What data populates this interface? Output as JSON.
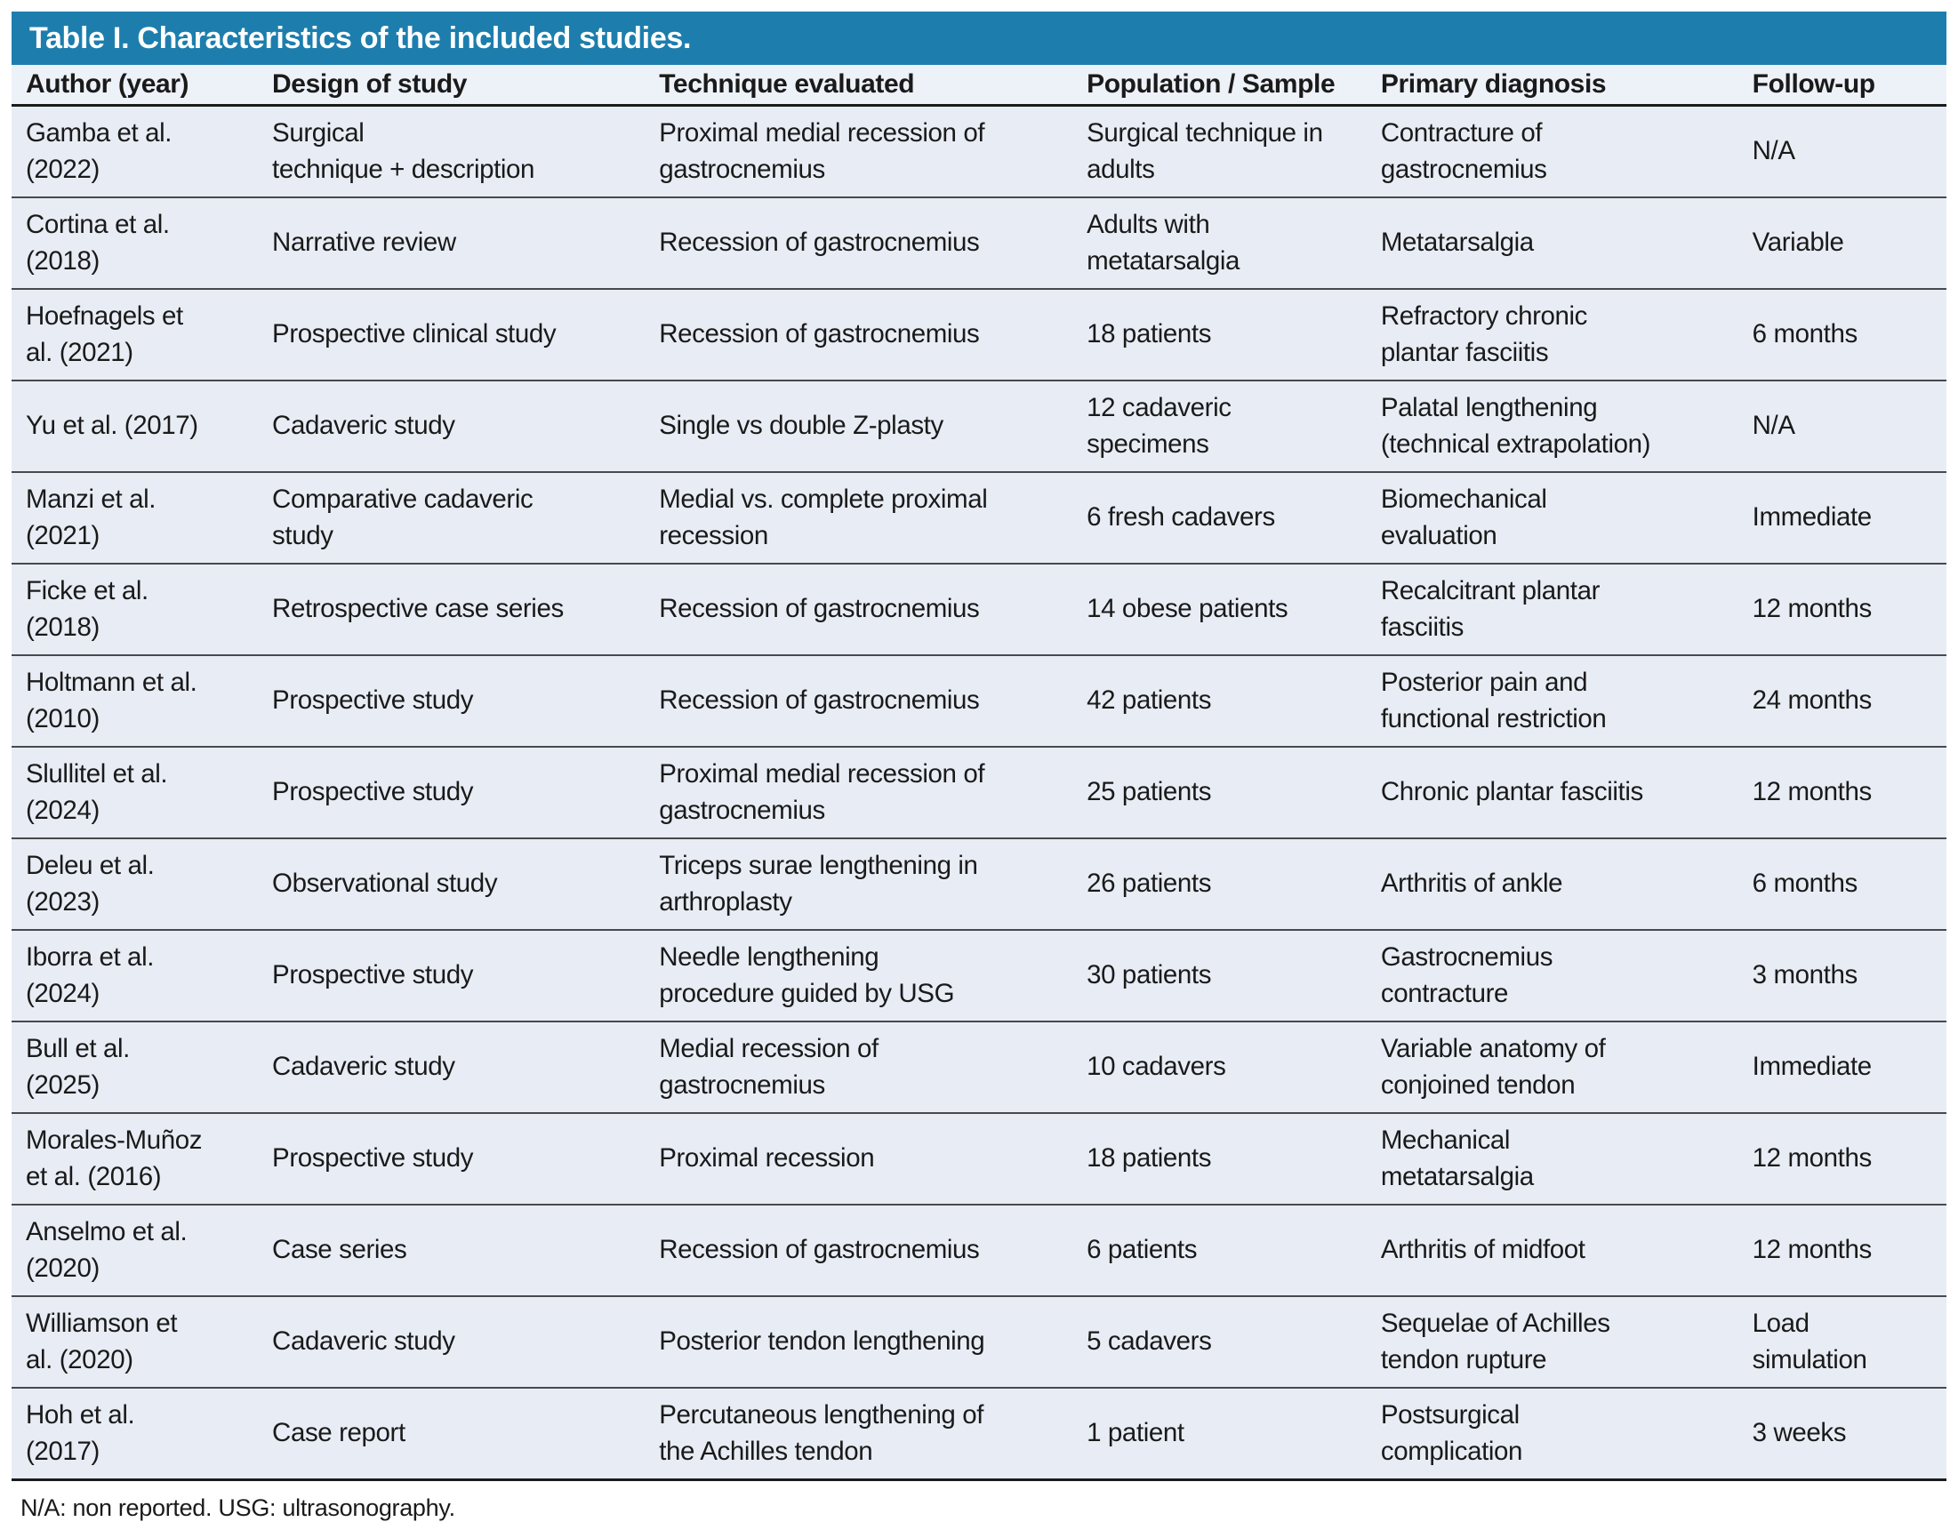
{
  "title": "Table I. Characteristics of the included studies.",
  "footnote": "N/A: non reported. USG: ultrasonography.",
  "colors": {
    "page_bg": "#ffffff",
    "title_bar": "#1d7ead",
    "title_text": "#ffffff",
    "header_bg": "#edf1f8",
    "row_bg": "#e8edf5",
    "divider": "#47494c",
    "strong_border": "#1b1b1b",
    "text": "#1a1a1a"
  },
  "table": {
    "columns": [
      {
        "key": "author",
        "label": "Author (year)",
        "width": "13.1%"
      },
      {
        "key": "design",
        "label": "Design of study",
        "width": "20.0%"
      },
      {
        "key": "technique",
        "label": "Technique evaluated",
        "width": "22.1%"
      },
      {
        "key": "population",
        "label": "Population / Sample",
        "width": "15.2%"
      },
      {
        "key": "diagnosis",
        "label": "Primary diagnosis",
        "width": "19.2%"
      },
      {
        "key": "followup",
        "label": "Follow-up",
        "width": "10.4%"
      }
    ],
    "rows": [
      {
        "cells": [
          "Gamba et al.\n(2022)",
          "Surgical\ntechnique + description",
          "Proximal medial recession of\ngastrocnemius",
          "Surgical technique in\nadults",
          "Contracture of\ngastrocnemius",
          "N/A"
        ]
      },
      {
        "cells": [
          "Cortina et al.\n(2018)",
          "Narrative review",
          "Recession of gastrocnemius",
          "Adults with\nmetatarsalgia",
          "Metatarsalgia",
          "Variable"
        ]
      },
      {
        "cells": [
          "Hoefnagels et\nal. (2021)",
          "Prospective clinical study",
          "Recession of gastrocnemius",
          "18 patients",
          "Refractory chronic\nplantar fasciitis",
          "6 months"
        ]
      },
      {
        "cells": [
          "Yu et al. (2017)",
          "Cadaveric study",
          "Single vs double Z-plasty",
          "12 cadaveric\nspecimens",
          "Palatal lengthening\n(technical extrapolation)",
          "N/A"
        ]
      },
      {
        "cells": [
          "Manzi et al.\n(2021)",
          "Comparative cadaveric\nstudy",
          "Medial vs. complete proximal\nrecession",
          "6 fresh cadavers",
          "Biomechanical\nevaluation",
          "Immediate"
        ]
      },
      {
        "cells": [
          "Ficke et al.\n(2018)",
          "Retrospective case series",
          "Recession of gastrocnemius",
          "14 obese patients",
          "Recalcitrant plantar\nfasciitis",
          "12 months"
        ]
      },
      {
        "cells": [
          "Holtmann et al.\n(2010)",
          "Prospective study",
          "Recession of gastrocnemius",
          "42 patients",
          "Posterior pain and\nfunctional restriction",
          "24 months"
        ]
      },
      {
        "cells": [
          "Slullitel et al.\n(2024)",
          "Prospective study",
          "Proximal medial recession of\ngastrocnemius",
          "25 patients",
          "Chronic plantar fasciitis",
          "12 months"
        ]
      },
      {
        "cells": [
          "Deleu et al.\n(2023)",
          "Observational study",
          "Triceps surae lengthening in\narthroplasty",
          "26 patients",
          "Arthritis of ankle",
          "6 months"
        ]
      },
      {
        "cells": [
          "Iborra et al.\n(2024)",
          "Prospective study",
          "Needle lengthening\nprocedure guided by USG",
          "30 patients",
          "Gastrocnemius\ncontracture",
          "3 months"
        ]
      },
      {
        "cells": [
          "Bull et al.\n(2025)",
          "Cadaveric study",
          "Medial recession of\ngastrocnemius",
          "10 cadavers",
          "Variable anatomy of\nconjoined tendon",
          "Immediate"
        ]
      },
      {
        "cells": [
          "Morales-Muñoz\net al. (2016)",
          "Prospective study",
          "Proximal recession",
          "18 patients",
          "Mechanical\nmetatarsalgia",
          "12 months"
        ]
      },
      {
        "cells": [
          "Anselmo et al.\n(2020)",
          "Case series",
          "Recession of gastrocnemius",
          "6 patients",
          "Arthritis of midfoot",
          "12 months"
        ]
      },
      {
        "cells": [
          "Williamson et\nal. (2020)",
          "Cadaveric study",
          "Posterior tendon lengthening",
          "5 cadavers",
          "Sequelae of Achilles\ntendon rupture",
          "Load\nsimulation"
        ]
      },
      {
        "cells": [
          "Hoh et al.\n(2017)",
          "Case report",
          "Percutaneous lengthening of\nthe Achilles tendon",
          "1 patient",
          "Postsurgical\ncomplication",
          "3 weeks"
        ]
      }
    ]
  }
}
